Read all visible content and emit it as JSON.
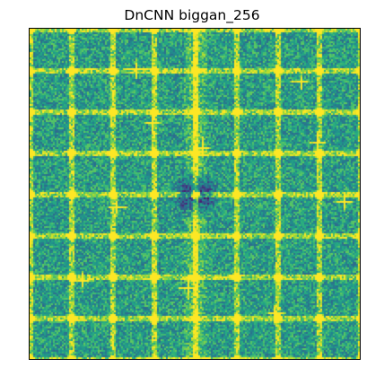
{
  "figure": {
    "title": "DnCNN biggan_256"
  },
  "image": {
    "description_colormap": "viridis",
    "colors": {
      "low": "#440154",
      "mid": "#21918c",
      "high": "#fde725"
    }
  }
}
